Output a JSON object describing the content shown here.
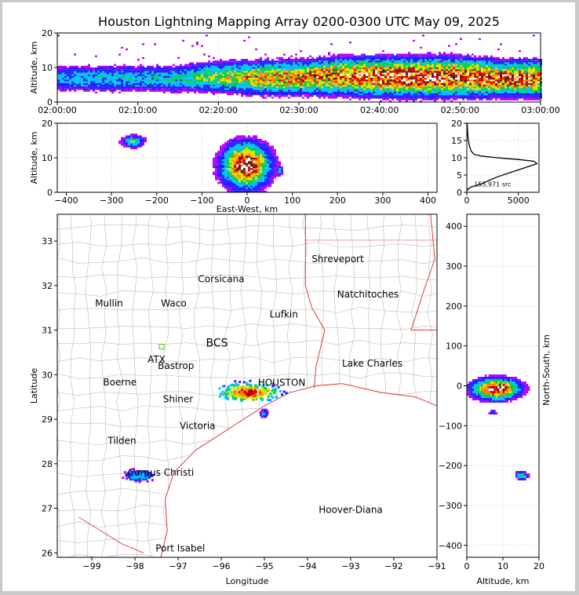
{
  "figure": {
    "title": "Houston Lightning Mapping Array 0200-0300 UTC May 09, 2025"
  },
  "colors": {
    "background": "#ffffff",
    "border": "#c9c9c9",
    "grid": "#dddddd",
    "state_border": "#d62728",
    "county": "#bbbbbb",
    "coast": "#d62728"
  },
  "chart_data": [
    {
      "panel": "time-altitude",
      "type": "heatmap",
      "xlabel": "",
      "ylabel": "Altitude, km",
      "xlim": [
        "02:00:00",
        "03:00:00"
      ],
      "ylim": [
        0,
        20
      ],
      "x_ticks": [
        "02:00:00",
        "02:10:00",
        "02:20:00",
        "02:30:00",
        "02:40:00",
        "02:50:00",
        "03:00:00"
      ],
      "y_ticks": [
        0,
        10,
        20
      ],
      "density_profile": [
        {
          "t": 0,
          "lo": 3,
          "hi": 11,
          "d": 0.3
        },
        {
          "t": 5,
          "lo": 3,
          "hi": 11,
          "d": 0.35
        },
        {
          "t": 10,
          "lo": 3,
          "hi": 11,
          "d": 0.35
        },
        {
          "t": 15,
          "lo": 3,
          "hi": 11,
          "d": 0.4
        },
        {
          "t": 20,
          "lo": 3,
          "hi": 12,
          "d": 0.55
        },
        {
          "t": 25,
          "lo": 2.5,
          "hi": 12,
          "d": 0.7
        },
        {
          "t": 30,
          "lo": 2.5,
          "hi": 12,
          "d": 0.8
        },
        {
          "t": 35,
          "lo": 2.5,
          "hi": 13,
          "d": 0.85
        },
        {
          "t": 40,
          "lo": 2,
          "hi": 13,
          "d": 0.95
        },
        {
          "t": 45,
          "lo": 2,
          "hi": 13,
          "d": 1.0
        },
        {
          "t": 50,
          "lo": 2,
          "hi": 13,
          "d": 0.95
        },
        {
          "t": 55,
          "lo": 2,
          "hi": 12,
          "d": 0.9
        },
        {
          "t": 60,
          "lo": 2,
          "hi": 12,
          "d": 0.9
        }
      ]
    },
    {
      "panel": "east-west-altitude",
      "type": "heatmap",
      "xlabel": "East-West, km",
      "ylabel": "Altitude, km",
      "xlim": [
        -420,
        420
      ],
      "ylim": [
        0,
        20
      ],
      "x_ticks": [
        -400,
        -300,
        -200,
        -100,
        0,
        100,
        200,
        300,
        400
      ],
      "y_ticks": [
        0,
        10,
        20
      ],
      "clusters": [
        {
          "x": -5,
          "z": 8,
          "sx": 45,
          "sz": 5.5,
          "peak": 1.0
        },
        {
          "x": -255,
          "z": 15,
          "sx": 22,
          "sz": 1.5,
          "peak": 0.45
        },
        {
          "x": 70,
          "z": 6.5,
          "sx": 5,
          "sz": 1,
          "peak": 0.3
        }
      ]
    },
    {
      "panel": "altitude-histogram",
      "type": "line",
      "xlim": [
        0,
        7000
      ],
      "ylim": [
        0,
        20
      ],
      "x_ticks": [
        0,
        5000
      ],
      "y_ticks": [
        0,
        5,
        10,
        15,
        20
      ],
      "annotation": "155,971 src",
      "x": [
        50,
        120,
        400,
        900,
        1500,
        2200,
        3000,
        4000,
        5500,
        6800,
        6500,
        5000,
        3000,
        1400,
        700,
        400,
        250,
        150,
        80,
        30
      ],
      "y": [
        0.5,
        1,
        1.5,
        2,
        2.5,
        3.5,
        4.5,
        5.5,
        7,
        8.3,
        9,
        9.5,
        10,
        10.5,
        11,
        12,
        13.5,
        15,
        17,
        20
      ]
    },
    {
      "panel": "plan-view",
      "type": "heatmap",
      "xlabel": "Longitude",
      "ylabel": "Latitude",
      "xlim": [
        -99.8,
        -91.0
      ],
      "ylim": [
        25.9,
        33.6
      ],
      "x_ticks": [
        -99,
        -98,
        -97,
        -96,
        -95,
        -94,
        -93,
        -92,
        -91
      ],
      "y_ticks": [
        26,
        27,
        28,
        29,
        30,
        31,
        32,
        33
      ],
      "cities": [
        {
          "name": "Shreveport",
          "lon": -93.3,
          "lat": 32.6,
          "color": "#000000"
        },
        {
          "name": "Corsicana",
          "lon": -96.0,
          "lat": 32.15,
          "color": "#000000"
        },
        {
          "name": "Natchitoches",
          "lon": -92.6,
          "lat": 31.8,
          "color": "#000000"
        },
        {
          "name": "Mullin",
          "lon": -98.6,
          "lat": 31.6,
          "color": "#ff7f0e"
        },
        {
          "name": "Waco",
          "lon": -97.1,
          "lat": 31.6,
          "color": "#000000"
        },
        {
          "name": "Lufkin",
          "lon": -94.55,
          "lat": 31.35,
          "color": "#000000"
        },
        {
          "name": "BCS",
          "lon": -96.1,
          "lat": 30.7,
          "color": "#000000"
        },
        {
          "name": "ATX",
          "lon": -97.5,
          "lat": 30.34,
          "color": "#ff7f0e"
        },
        {
          "name": "Bastrop",
          "lon": -97.05,
          "lat": 30.2,
          "color": "#000000"
        },
        {
          "name": "Lake Charles",
          "lon": -92.5,
          "lat": 30.25,
          "color": "#000000"
        },
        {
          "name": "Boerne",
          "lon": -98.35,
          "lat": 29.83,
          "color": "#000000"
        },
        {
          "name": "HOUSTON",
          "lon": -94.6,
          "lat": 29.82,
          "color": "#ff7f0e"
        },
        {
          "name": "Shiner",
          "lon": -97.0,
          "lat": 29.45,
          "color": "#000000"
        },
        {
          "name": "Victoria",
          "lon": -96.55,
          "lat": 28.85,
          "color": "#000000"
        },
        {
          "name": "Tilden",
          "lon": -98.3,
          "lat": 28.52,
          "color": "#000000"
        },
        {
          "name": "Corpus Christi",
          "lon": -97.4,
          "lat": 27.8,
          "color": "#000000"
        },
        {
          "name": "Hoover-Diana",
          "lon": -93.0,
          "lat": 26.97,
          "color": "#1f1fff"
        },
        {
          "name": "Port Isabel",
          "lon": -96.95,
          "lat": 26.1,
          "color": "#000000"
        }
      ],
      "clusters": [
        {
          "lon": -95.35,
          "lat": 29.6,
          "slon": 0.45,
          "slat": 0.13,
          "peak": 1.0,
          "angle": -0.4
        },
        {
          "lon": -97.9,
          "lat": 27.73,
          "slon": 0.2,
          "slat": 0.07,
          "peak": 0.45,
          "angle": 0
        },
        {
          "lon": -95.0,
          "lat": 29.13,
          "slon": 0.05,
          "slat": 0.05,
          "peak": 0.35,
          "angle": 0
        }
      ]
    },
    {
      "panel": "altitude-north-south",
      "type": "heatmap",
      "xlabel": "Altitude, km",
      "ylabel": "North-South, km",
      "xlim": [
        0,
        20
      ],
      "ylim": [
        -430,
        430
      ],
      "x_ticks": [
        0,
        10,
        20
      ],
      "y_ticks": [
        -400,
        -300,
        -200,
        -100,
        0,
        100,
        200,
        300,
        400
      ],
      "clusters": [
        {
          "z": 8,
          "y": -5,
          "sz": 5.5,
          "sy": 22,
          "peak": 1.0
        },
        {
          "z": 15,
          "y": -222,
          "sz": 1.5,
          "sy": 10,
          "peak": 0.45
        },
        {
          "z": 7,
          "y": -65,
          "sz": 1,
          "sy": 6,
          "peak": 0.3
        }
      ]
    }
  ]
}
